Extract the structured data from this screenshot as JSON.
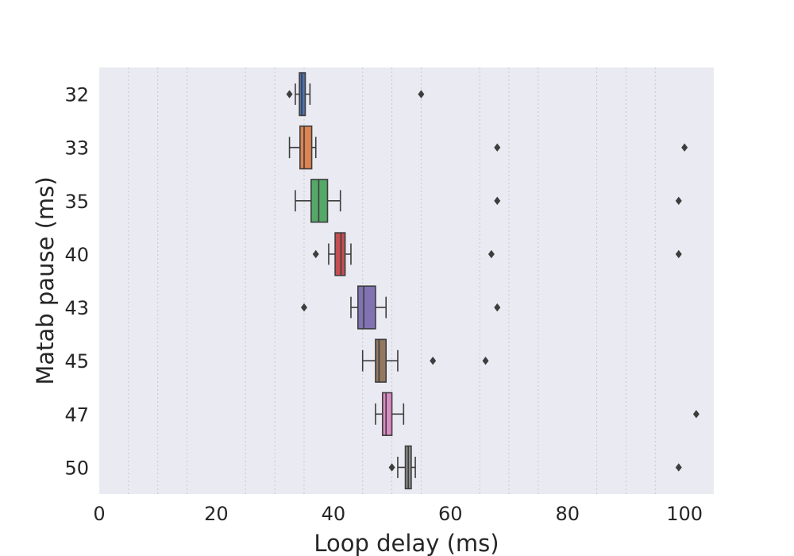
{
  "chart_data": {
    "type": "boxplot",
    "orientation": "horizontal",
    "title": "",
    "xlabel": "Loop delay (ms)",
    "ylabel": "Matab pause (ms)",
    "xlim": [
      0,
      105
    ],
    "x_ticks": [
      0,
      20,
      40,
      60,
      80,
      100
    ],
    "x_tick_labels": [
      "0",
      "20",
      "40",
      "60",
      "80",
      "100"
    ],
    "minor_gridlines": [
      5,
      10,
      15,
      25,
      30,
      35,
      45,
      50,
      55,
      65,
      70,
      75,
      85,
      90,
      95
    ],
    "grid": true,
    "background_color": "#eaeaf2",
    "categories": [
      "32",
      "33",
      "35",
      "40",
      "43",
      "45",
      "47",
      "50"
    ],
    "boxes": [
      {
        "category": "32",
        "whislo": 33.5,
        "q1": 34.2,
        "median": 34.6,
        "q3": 35.2,
        "whishi": 36.0,
        "fliers": [
          32.5,
          55.0
        ],
        "color": "#4c72b0"
      },
      {
        "category": "33",
        "whislo": 32.5,
        "q1": 34.3,
        "median": 35.0,
        "q3": 36.3,
        "whishi": 37.0,
        "fliers": [
          68.0,
          100.0
        ],
        "color": "#dd8452"
      },
      {
        "category": "35",
        "whislo": 33.5,
        "q1": 36.2,
        "median": 37.5,
        "q3": 39.0,
        "whishi": 41.2,
        "fliers": [
          68.0,
          99.0
        ],
        "color": "#55a868"
      },
      {
        "category": "40",
        "whislo": 39.2,
        "q1": 40.3,
        "median": 41.3,
        "q3": 42.0,
        "whishi": 43.0,
        "fliers": [
          37.0,
          67.0,
          99.0
        ],
        "color": "#c44e52"
      },
      {
        "category": "43",
        "whislo": 43.0,
        "q1": 44.2,
        "median": 45.2,
        "q3": 47.2,
        "whishi": 49.0,
        "fliers": [
          35.0,
          68.0
        ],
        "color": "#8172b3"
      },
      {
        "category": "45",
        "whislo": 45.0,
        "q1": 47.2,
        "median": 47.8,
        "q3": 49.0,
        "whishi": 51.0,
        "fliers": [
          57.0,
          66.0
        ],
        "color": "#937860"
      },
      {
        "category": "47",
        "whislo": 47.2,
        "q1": 48.4,
        "median": 49.0,
        "q3": 50.0,
        "whishi": 52.0,
        "fliers": [
          102.0
        ],
        "color": "#da8bc3"
      },
      {
        "category": "50",
        "whislo": 51.0,
        "q1": 52.3,
        "median": 52.8,
        "q3": 53.3,
        "whishi": 54.0,
        "fliers": [
          50.0,
          99.0
        ],
        "color": "#8c8c8c"
      }
    ]
  }
}
